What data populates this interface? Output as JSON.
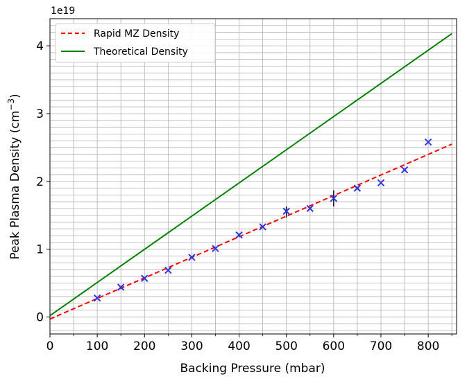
{
  "chart_data": {
    "type": "scatter",
    "title": "",
    "xlabel": "Backing Pressure (mbar)",
    "ylabel_main": "Peak Plasma Density (cm",
    "ylabel_sup": "−3",
    "ylabel_close": ")",
    "y_offset_text": "1e19",
    "xlim": [
      0,
      860
    ],
    "ylim": [
      -0.25,
      4.4
    ],
    "y_scale_multiplier": 1e+19,
    "x_ticks": [
      0,
      100,
      200,
      300,
      400,
      500,
      600,
      700,
      800
    ],
    "x_tick_labels": [
      "0",
      "100",
      "200",
      "300",
      "400",
      "500",
      "600",
      "700",
      "800"
    ],
    "y_ticks": [
      0,
      1,
      2,
      3,
      4
    ],
    "y_tick_labels": [
      "0",
      "1",
      "2",
      "3",
      "4"
    ],
    "x_minor_step": 50,
    "y_minor_step": 0.1,
    "grid": true,
    "legend_position": "top-left",
    "series": [
      {
        "name": "Rapid MZ Density",
        "kind": "line",
        "style": "dashed",
        "color": "#ff0000",
        "x": [
          0,
          850
        ],
        "y": [
          -0.03,
          2.55
        ]
      },
      {
        "name": "Theoretical Density",
        "kind": "line",
        "style": "solid",
        "color": "#008000",
        "x": [
          0,
          850
        ],
        "y": [
          0.02,
          4.18
        ]
      },
      {
        "kind": "scatter",
        "marker": "x",
        "color": "#3333dd",
        "x": [
          100,
          150,
          200,
          250,
          300,
          350,
          400,
          450,
          500,
          550,
          600,
          650,
          700,
          750,
          800
        ],
        "y": [
          0.28,
          0.44,
          0.57,
          0.69,
          0.88,
          1.01,
          1.21,
          1.33,
          1.56,
          1.6,
          1.75,
          1.9,
          1.98,
          2.17,
          2.58
        ]
      }
    ],
    "error_bars": [
      {
        "x": 500,
        "y": 1.55,
        "yerr": 0.08,
        "color": "#111111"
      },
      {
        "x": 600,
        "y": 1.75,
        "yerr": 0.12,
        "color": "#111111"
      }
    ]
  }
}
